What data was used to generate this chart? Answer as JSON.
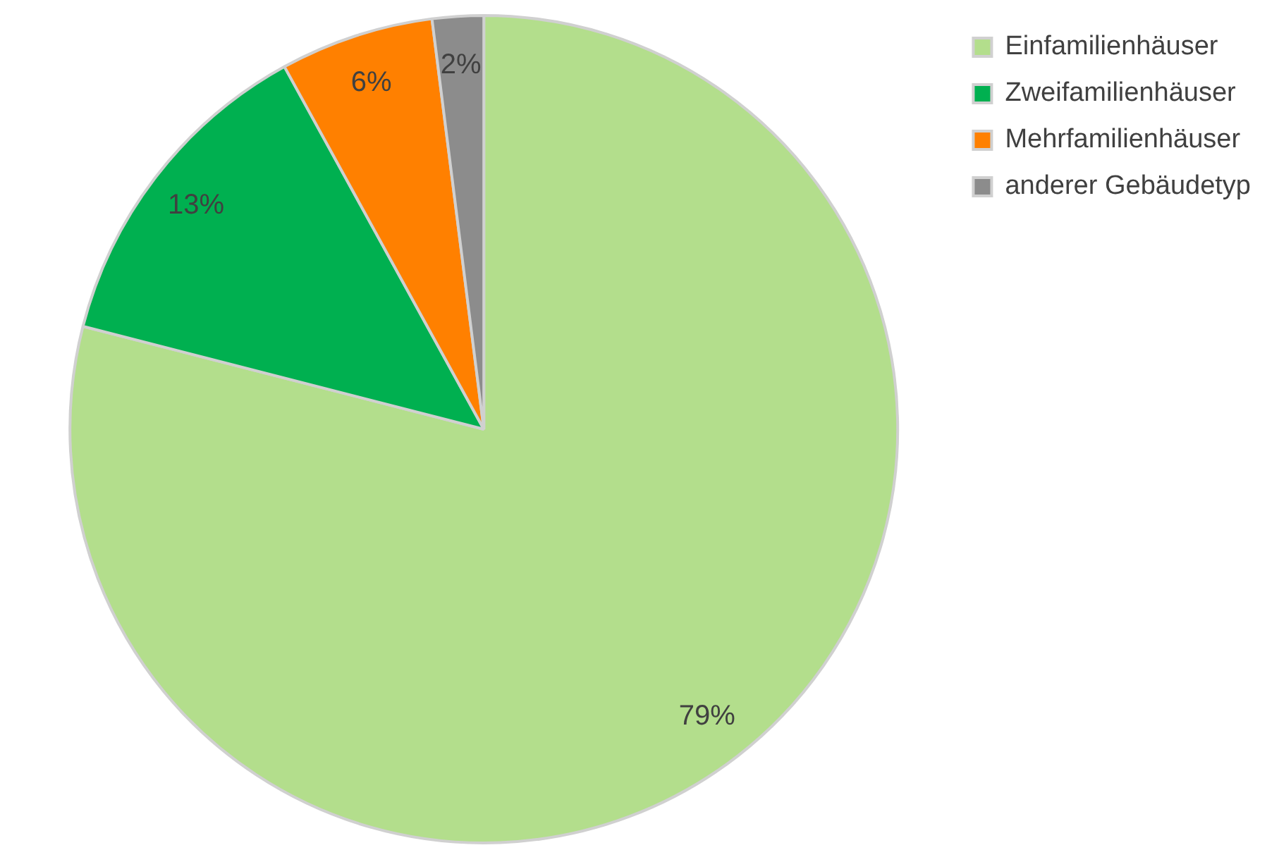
{
  "chart_data": {
    "type": "pie",
    "categories": [
      "Einfamilienhäuser",
      "Zweifamilienhäuser",
      "Mehrfamilienhäuser",
      "anderer Gebäudetyp"
    ],
    "values": [
      79,
      13,
      6,
      2
    ],
    "colors": [
      "#b3de8c",
      "#00b050",
      "#ff8000",
      "#8c8c8c"
    ],
    "value_labels": [
      "79%",
      "13%",
      "6%",
      "2%"
    ],
    "legend": "top right"
  }
}
